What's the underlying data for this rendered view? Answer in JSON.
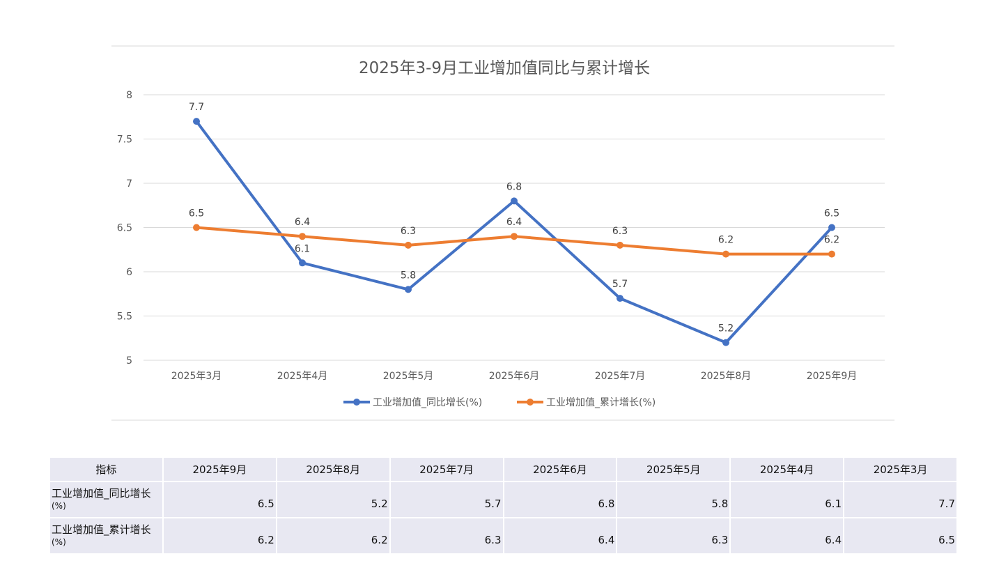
{
  "chart_data": {
    "type": "line",
    "title": "2025年3-9月工业增加值同比与累计增长",
    "categories": [
      "2025年3月",
      "2025年4月",
      "2025年5月",
      "2025年6月",
      "2025年7月",
      "2025年8月",
      "2025年9月"
    ],
    "series": [
      {
        "name": "工业增加值_同比增长(%)",
        "color": "#4472c4",
        "values": [
          7.7,
          6.1,
          5.8,
          6.8,
          5.7,
          5.2,
          6.5
        ]
      },
      {
        "name": "工业增加值_累计增长(%)",
        "color": "#ed7d31",
        "values": [
          6.5,
          6.4,
          6.3,
          6.4,
          6.3,
          6.2,
          6.2
        ]
      }
    ],
    "ylim": [
      5,
      8
    ],
    "yticks": [
      "5",
      "5.5",
      "6",
      "6.5",
      "7",
      "7.5",
      "8"
    ],
    "grid": true,
    "legend": "bottom"
  },
  "table": {
    "header_label": "指标",
    "columns": [
      "2025年9月",
      "2025年8月",
      "2025年7月",
      "2025年6月",
      "2025年5月",
      "2025年4月",
      "2025年3月"
    ],
    "rows": [
      {
        "label_main": "工业增加值_同比增长",
        "label_unit": "(%)",
        "values": [
          "6.5",
          "5.2",
          "5.7",
          "6.8",
          "5.8",
          "6.1",
          "7.7"
        ]
      },
      {
        "label_main": "工业增加值_累计增长",
        "label_unit": "(%)",
        "values": [
          "6.2",
          "6.2",
          "6.3",
          "6.4",
          "6.3",
          "6.4",
          "6.5"
        ]
      }
    ]
  }
}
